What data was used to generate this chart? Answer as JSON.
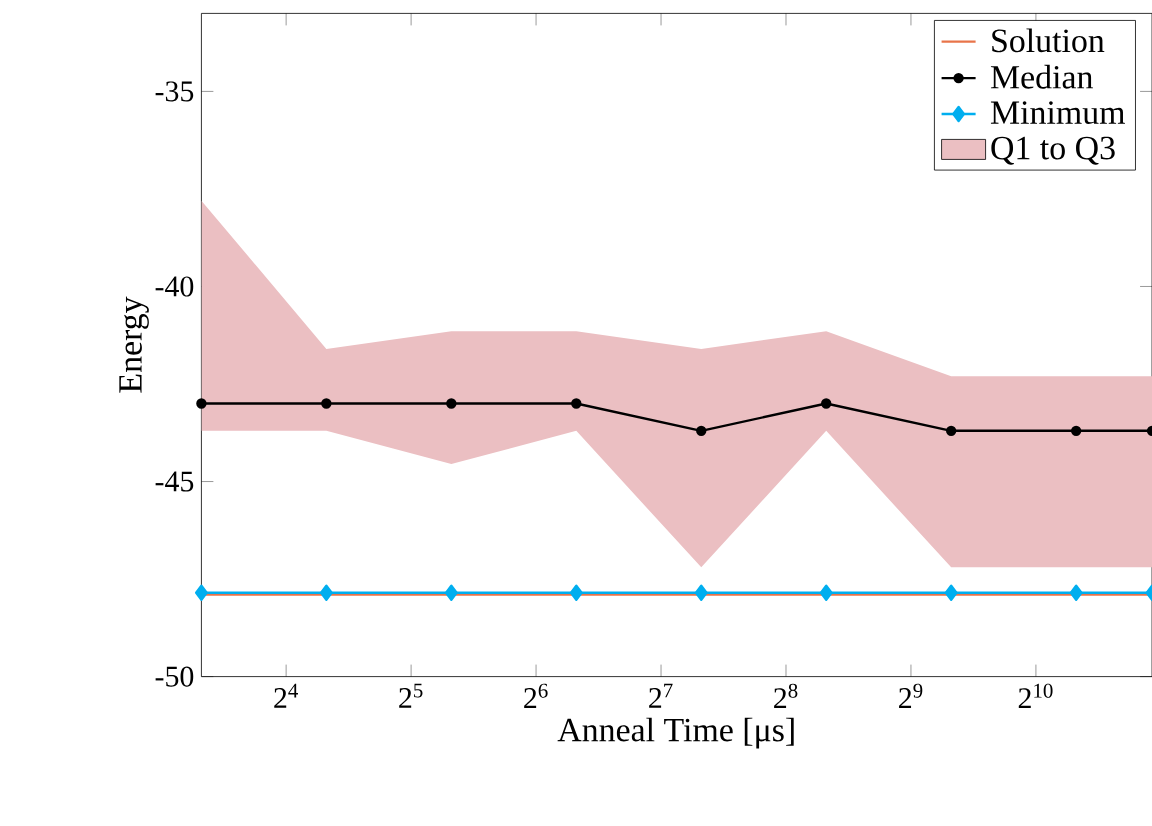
{
  "chart_data": {
    "type": "line",
    "xlabel": "Anneal Time [μs]",
    "ylabel": "Energy",
    "log": "x",
    "x": [
      10,
      20,
      40,
      80,
      160,
      320,
      640,
      1280,
      1950
    ],
    "xlim": [
      10,
      1950
    ],
    "ylim": [
      -50,
      -33
    ],
    "xticks": [
      {
        "value": 16,
        "label": "2$^{4}$"
      },
      {
        "value": 32,
        "label": "2$^{5}$"
      },
      {
        "value": 64,
        "label": "2$^{6}$"
      },
      {
        "value": 128,
        "label": "2$^{7}$"
      },
      {
        "value": 256,
        "label": "2$^{8}$"
      },
      {
        "value": 512,
        "label": "2$^{9}$"
      },
      {
        "value": 1024,
        "label": "2$^{10}$"
      }
    ],
    "yticks": [
      -50,
      -45,
      -40,
      -35
    ],
    "grid": false,
    "legend": "top right",
    "series": [
      {
        "name": "Solution",
        "color": "#e8744a",
        "marker": "none",
        "values": [
          -47.9,
          -47.9,
          -47.9,
          -47.9,
          -47.9,
          -47.9,
          -47.9,
          -47.9,
          -47.9
        ]
      },
      {
        "name": "Median",
        "color": "#000000",
        "marker": "circle",
        "values": [
          -43,
          -43,
          -43,
          -43,
          -43.7,
          -43,
          -43.7,
          -43.7,
          -43.7
        ]
      },
      {
        "name": "Minimum",
        "color": "#00aeef",
        "marker": "diamond",
        "values": [
          -47.85,
          -47.85,
          -47.85,
          -47.85,
          -47.85,
          -47.85,
          -47.85,
          -47.85,
          -47.85
        ]
      },
      {
        "name": "Q1 to Q3",
        "type": "area",
        "color": "#ebbfc2",
        "values": [
          null,
          null,
          null,
          null,
          null,
          null,
          null,
          null,
          null
        ],
        "lower": [
          -43.7,
          -43.7,
          -44.55,
          -43.7,
          -47.2,
          -43.7,
          -47.2,
          -47.2,
          -47.2
        ],
        "upper": [
          -37.8,
          -41.6,
          -41.15,
          -41.15,
          -41.6,
          -41.15,
          -42.3,
          -42.3,
          -42.3
        ]
      }
    ]
  }
}
